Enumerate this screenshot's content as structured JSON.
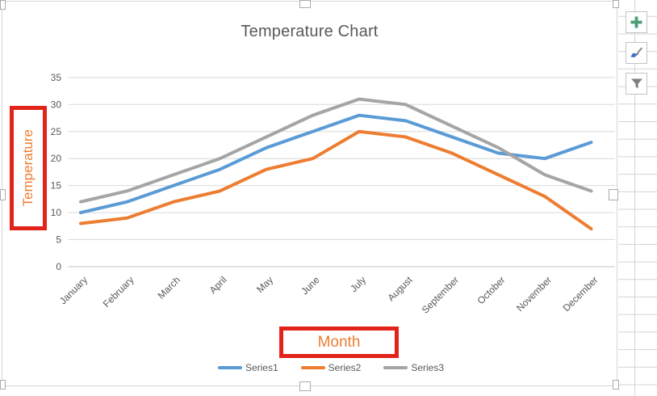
{
  "chart_data": {
    "type": "line",
    "title": "Temperature Chart",
    "xlabel": "Month",
    "ylabel": "Temperature",
    "categories": [
      "January",
      "February",
      "March",
      "April",
      "May",
      "June",
      "July",
      "August",
      "September",
      "October",
      "November",
      "December"
    ],
    "series": [
      {
        "name": "Series1",
        "color": "#5b9bd5",
        "values": [
          10,
          12,
          15,
          18,
          22,
          25,
          28,
          27,
          24,
          21,
          20,
          23
        ]
      },
      {
        "name": "Series2",
        "color": "#ed7d31",
        "values": [
          8,
          9,
          12,
          14,
          18,
          20,
          25,
          24,
          21,
          17,
          13,
          7
        ]
      },
      {
        "name": "Series3",
        "color": "#a5a5a5",
        "values": [
          12,
          14,
          17,
          20,
          24,
          28,
          31,
          30,
          26,
          22,
          17,
          14
        ]
      }
    ],
    "ylim": [
      0,
      35
    ],
    "ytick_step": 5,
    "yticks": [
      0,
      5,
      10,
      15,
      20,
      25,
      30,
      35
    ],
    "grid": true,
    "legend_position": "bottom"
  },
  "annotations": {
    "highlight_color": "#e2231a",
    "axis_title_color": "#ed7d31"
  },
  "styles": {
    "title_color": "#595959",
    "tick_color": "#595959",
    "gridline_color": "#d9d9d9",
    "axisline_color": "#c6c6c6"
  },
  "chart_tools": {
    "add_button": {
      "icon": "plus-icon",
      "color": "#4a9e74"
    },
    "style_button": {
      "icon": "brush-icon",
      "color": "#808080",
      "tip_color": "#4472c4"
    },
    "filter_button": {
      "icon": "funnel-icon",
      "color": "#7f7f7f"
    }
  }
}
